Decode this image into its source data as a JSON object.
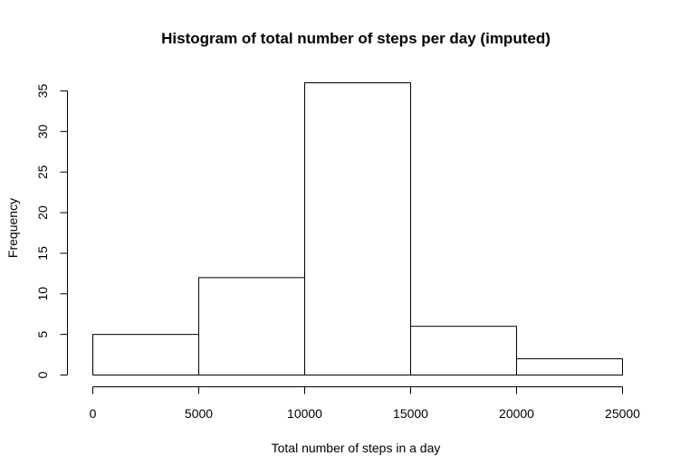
{
  "chart_data": {
    "type": "bar",
    "title": "Histogram of total number of steps per day (imputed)",
    "xlabel": "Total number of steps in a day",
    "ylabel": "Frequency",
    "bins": [
      {
        "start": 0,
        "end": 5000,
        "count": 5
      },
      {
        "start": 5000,
        "end": 10000,
        "count": 12
      },
      {
        "start": 10000,
        "end": 15000,
        "count": 36
      },
      {
        "start": 15000,
        "end": 20000,
        "count": 6
      },
      {
        "start": 20000,
        "end": 25000,
        "count": 2
      }
    ],
    "xlim": [
      0,
      25000
    ],
    "ylim": [
      0,
      36
    ],
    "x_ticks": [
      0,
      5000,
      10000,
      15000,
      20000,
      25000
    ],
    "x_tick_labels": [
      "0",
      "5000",
      "10000",
      "15000",
      "20000",
      "25000"
    ],
    "y_ticks": [
      0,
      5,
      10,
      15,
      20,
      25,
      30,
      35
    ],
    "y_tick_labels": [
      "0",
      "5",
      "10",
      "15",
      "20",
      "25",
      "30",
      "35"
    ],
    "grid": false,
    "legend": "none",
    "bar_fill": "#ffffff",
    "bar_stroke": "#000000"
  }
}
